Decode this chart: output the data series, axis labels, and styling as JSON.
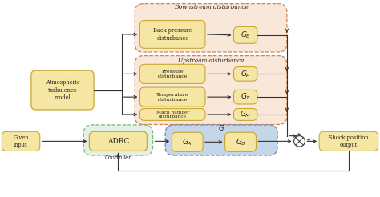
{
  "bg_color": "#ffffff",
  "box_yellow": "#f5e6a3",
  "box_yellow_border": "#c8a832",
  "box_green_fill": "#d4e8d4",
  "box_green_border": "#7ab87a",
  "box_blue_fill": "#b8cce4",
  "box_blue_border": "#6688bb",
  "box_salmon_fill": "#f5d5b8",
  "box_salmon_border": "#d4824a",
  "arrow_color": "#333333",
  "text_color": "#222222",
  "figsize": [
    4.74,
    2.46
  ],
  "dpi": 100,
  "xlim": [
    0,
    10
  ],
  "ylim": [
    0,
    5.3
  ],
  "downstream_label": "Downstream disturbance",
  "upstream_label": "Upstream disturbance",
  "back_pressure_label": "Back pressure\ndisturbance",
  "pressure_label": "Pressure\ndisturbance",
  "temperature_label": "Temperature\ndisturbance",
  "mach_label": "Mach number\ndisturbance",
  "atm_label": "Atmospheric\nturbulence\nmodel",
  "adrc_label": "ADRC",
  "controller_label": "Controller",
  "given_label": "Given\ninput",
  "shock_label": "Shock position\noutput",
  "G_label": "G",
  "GE_label": "$G_E$",
  "GP_label": "$G_P$",
  "GT_label": "$G_T$",
  "GM_label": "$G_M$",
  "GA_label": "$G_A$",
  "GB_label": "$G_B$"
}
